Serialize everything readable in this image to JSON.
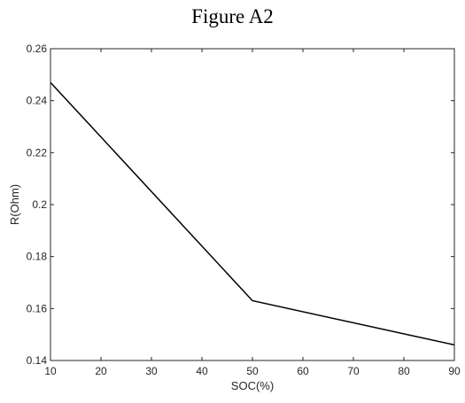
{
  "figure": {
    "title": "Figure A2"
  },
  "chart_data": {
    "type": "line",
    "title": "",
    "xlabel": "SOC(%)",
    "ylabel": "R(Ohm)",
    "xlim": [
      10,
      90
    ],
    "ylim": [
      0.14,
      0.26
    ],
    "xticks": [
      "10",
      "20",
      "30",
      "40",
      "50",
      "60",
      "70",
      "80",
      "90"
    ],
    "yticks": [
      "0.14",
      "0.16",
      "0.18",
      "0.2",
      "0.22",
      "0.24",
      "0.26"
    ],
    "grid": false,
    "series": [
      {
        "color": "#000000",
        "x": [
          10,
          50,
          90
        ],
        "y": [
          0.247,
          0.163,
          0.146
        ]
      }
    ]
  }
}
